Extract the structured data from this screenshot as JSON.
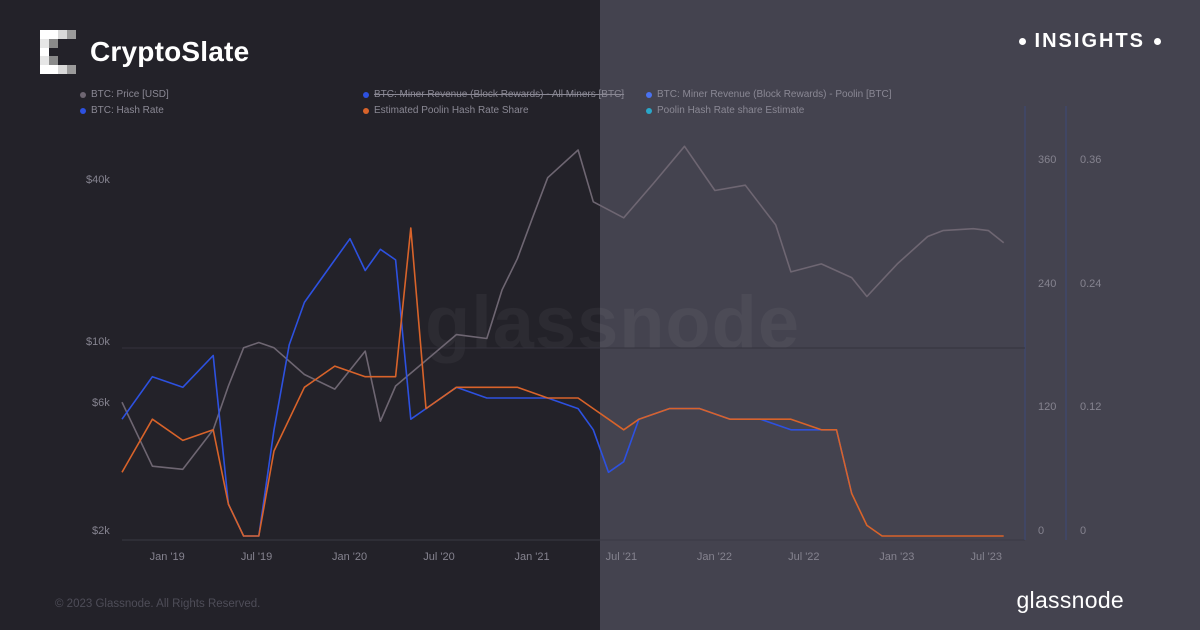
{
  "header": {
    "brand_name": "CryptoSlate",
    "badge": "INSIGHTS"
  },
  "footer": {
    "copyright": "© 2023 Glassnode. All Rights Reserved.",
    "provider": "glassnode"
  },
  "watermark": "glassnode",
  "colors": {
    "btc_price": "#6e6672",
    "miner_revenue_all": "#2d51e0",
    "hash_rate": "#2d51e0",
    "poolin_share": "#d8632a",
    "poolin_revenue": "#4a72f0",
    "poolin_estimate": "#2aa7c9"
  },
  "chart_data": {
    "type": "line",
    "title": "",
    "x_ticks": [
      "Jan '19",
      "Jul '19",
      "Jan '20",
      "Jul '20",
      "Jan '21",
      "Jul '21",
      "Jan '22",
      "Jul '22",
      "Jan '23",
      "Jul '23"
    ],
    "y_left": {
      "scale": "log",
      "ticks": [
        "$40k",
        "$10k",
        "$6k",
        "$2k"
      ],
      "range": [
        2000,
        60000
      ]
    },
    "y_right1": {
      "ticks": [
        "360",
        "240",
        "120",
        "0"
      ],
      "range": [
        0,
        420
      ]
    },
    "y_right2": {
      "ticks": [
        "0.36",
        "0.24",
        "0.12",
        "0"
      ],
      "range": [
        0,
        0.42
      ]
    },
    "legend": [
      {
        "label": "BTC: Price [USD]",
        "color": "#6e6672",
        "struck": false
      },
      {
        "label": "BTC: Miner Revenue (Block Rewards) - All Miners [BTC]",
        "color": "#2d51e0",
        "struck": true
      },
      {
        "label": "BTC: Miner Revenue (Block Rewards) - Poolin [BTC]",
        "color": "#4a72f0",
        "struck": false
      },
      {
        "label": "BTC: Hash Rate",
        "color": "#2d51e0",
        "struck": false
      },
      {
        "label": "Estimated Poolin Hash Rate Share",
        "color": "#d8632a",
        "struck": false
      },
      {
        "label": "Poolin Hash Rate share Estimate",
        "color": "#2aa7c9",
        "struck": false
      }
    ],
    "series": [
      {
        "name": "BTC: Price [USD]",
        "x": [
          "2018-10",
          "2018-12",
          "2019-02",
          "2019-04",
          "2019-05",
          "2019-06",
          "2019-07",
          "2019-08",
          "2019-10",
          "2019-12",
          "2020-02",
          "2020-03",
          "2020-04",
          "2020-06",
          "2020-08",
          "2020-10",
          "2020-11",
          "2020-12",
          "2021-01",
          "2021-02",
          "2021-04",
          "2021-05",
          "2021-07",
          "2021-09",
          "2021-11",
          "2022-01",
          "2022-03",
          "2022-05",
          "2022-06",
          "2022-08",
          "2022-10",
          "2022-11",
          "2023-01",
          "2023-03",
          "2023-04",
          "2023-06",
          "2023-07",
          "2023-08"
        ],
        "values": [
          6500,
          3700,
          3600,
          5100,
          7500,
          10500,
          11000,
          10500,
          8300,
          7300,
          10200,
          5500,
          7500,
          9400,
          11800,
          11400,
          17500,
          23000,
          33000,
          47000,
          60000,
          38000,
          33000,
          45000,
          62000,
          42000,
          44000,
          31000,
          20500,
          22000,
          19500,
          16500,
          22000,
          28000,
          29500,
          30000,
          29500,
          26500
        ]
      },
      {
        "name": "Estimated Poolin Hash Rate Share",
        "x": [
          "2018-10",
          "2018-12",
          "2019-02",
          "2019-04",
          "2019-05",
          "2019-06",
          "2019-07",
          "2019-08",
          "2019-10",
          "2019-12",
          "2020-02",
          "2020-04",
          "2020-05",
          "2020-06",
          "2020-08",
          "2020-10",
          "2020-12",
          "2021-02",
          "2021-04",
          "2021-05",
          "2021-06",
          "2021-07",
          "2021-08",
          "2021-10",
          "2021-12",
          "2022-02",
          "2022-04",
          "2022-06",
          "2022-08",
          "2022-09",
          "2022-10",
          "2022-11",
          "2022-12",
          "2023-01",
          "2023-04",
          "2023-08"
        ],
        "values": [
          0.06,
          0.11,
          0.09,
          0.1,
          0.03,
          0.0,
          0.0,
          0.08,
          0.14,
          0.16,
          0.15,
          0.15,
          0.29,
          0.12,
          0.14,
          0.14,
          0.14,
          0.13,
          0.13,
          0.12,
          0.11,
          0.1,
          0.11,
          0.12,
          0.12,
          0.11,
          0.11,
          0.11,
          0.1,
          0.1,
          0.04,
          0.01,
          0.0,
          0.0,
          0.0,
          0.0
        ]
      },
      {
        "name": "BTC: Hash Rate",
        "x": [
          "2018-10",
          "2018-12",
          "2019-02",
          "2019-04",
          "2019-05",
          "2019-06",
          "2019-07",
          "2019-08",
          "2019-09",
          "2019-10",
          "2019-12",
          "2020-01",
          "2020-02",
          "2020-03",
          "2020-04",
          "2020-05",
          "2020-06",
          "2020-08",
          "2020-10",
          "2020-12",
          "2021-02",
          "2021-04",
          "2021-05",
          "2021-06",
          "2021-07",
          "2021-08",
          "2021-10",
          "2021-12",
          "2022-02",
          "2022-04",
          "2022-06",
          "2022-08",
          "2022-09",
          "2022-10"
        ],
        "values": [
          0.11,
          0.15,
          0.14,
          0.17,
          0.03,
          0.0,
          0.0,
          0.1,
          0.18,
          0.22,
          0.26,
          0.28,
          0.25,
          0.27,
          0.26,
          0.11,
          0.12,
          0.14,
          0.13,
          0.13,
          0.13,
          0.12,
          0.1,
          0.06,
          0.07,
          0.11,
          0.12,
          0.12,
          0.11,
          0.11,
          0.1,
          0.1,
          0.1,
          0.04
        ]
      }
    ]
  }
}
